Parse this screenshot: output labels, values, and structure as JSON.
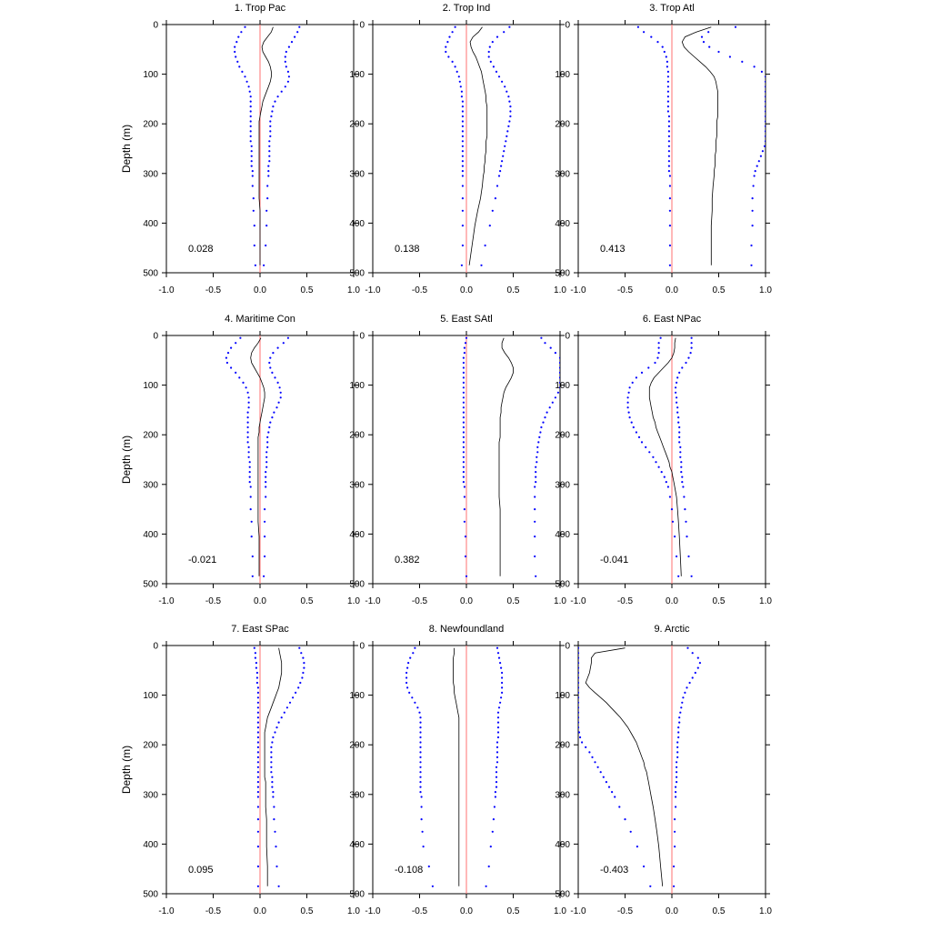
{
  "chart_data": {
    "type": "line",
    "xlim": [
      -1.0,
      1.0
    ],
    "ylim": [
      500,
      0
    ],
    "x_ticks": [
      "-1.0",
      "-0.5",
      "0.0",
      "0.5",
      "1.0"
    ],
    "y_ticks": [
      "0",
      "100",
      "200",
      "300",
      "400",
      "500"
    ],
    "ylabel": "Depth (m)",
    "grid": false,
    "colors": {
      "mean_line": "#000000",
      "bounds": "#0000ff",
      "zero_line": "#ff7070"
    },
    "depths": [
      5,
      15,
      25,
      35,
      45,
      55,
      65,
      75,
      85,
      95,
      105,
      115,
      125,
      135,
      145,
      155,
      165,
      175,
      185,
      195,
      205,
      215,
      225,
      235,
      245,
      255,
      265,
      275,
      285,
      295,
      305,
      325,
      350,
      375,
      405,
      445,
      485
    ],
    "panels": [
      {
        "title": "1. Trop Pac",
        "annotation": "0.028",
        "mean": [
          0.14,
          0.12,
          0.08,
          0.04,
          0.02,
          0.03,
          0.06,
          0.09,
          0.11,
          0.12,
          0.12,
          0.11,
          0.09,
          0.07,
          0.05,
          0.03,
          0.02,
          0.01,
          0.0,
          -0.01,
          -0.01,
          -0.01,
          -0.01,
          -0.01,
          -0.01,
          -0.01,
          -0.01,
          -0.01,
          -0.01,
          -0.01,
          -0.01,
          -0.01,
          -0.01,
          0.0,
          0.0,
          0.0,
          0.0
        ],
        "lower": [
          -0.16,
          -0.2,
          -0.23,
          -0.25,
          -0.27,
          -0.27,
          -0.26,
          -0.24,
          -0.22,
          -0.19,
          -0.16,
          -0.14,
          -0.12,
          -0.11,
          -0.1,
          -0.1,
          -0.1,
          -0.1,
          -0.1,
          -0.1,
          -0.1,
          -0.1,
          -0.1,
          -0.1,
          -0.09,
          -0.09,
          -0.09,
          -0.09,
          -0.09,
          -0.08,
          -0.08,
          -0.08,
          -0.07,
          -0.07,
          -0.06,
          -0.06,
          -0.05
        ],
        "upper": [
          0.42,
          0.4,
          0.37,
          0.34,
          0.31,
          0.28,
          0.27,
          0.27,
          0.28,
          0.3,
          0.31,
          0.3,
          0.27,
          0.23,
          0.19,
          0.16,
          0.14,
          0.13,
          0.12,
          0.11,
          0.11,
          0.11,
          0.11,
          0.1,
          0.1,
          0.1,
          0.1,
          0.1,
          0.09,
          0.09,
          0.09,
          0.08,
          0.08,
          0.07,
          0.07,
          0.06,
          0.04
        ]
      },
      {
        "title": "2. Trop Ind",
        "annotation": "0.138",
        "mean": [
          0.17,
          0.13,
          0.07,
          0.04,
          0.05,
          0.07,
          0.1,
          0.12,
          0.14,
          0.16,
          0.17,
          0.18,
          0.19,
          0.2,
          0.21,
          0.21,
          0.22,
          0.22,
          0.22,
          0.22,
          0.22,
          0.22,
          0.22,
          0.21,
          0.21,
          0.21,
          0.2,
          0.2,
          0.19,
          0.19,
          0.18,
          0.17,
          0.15,
          0.12,
          0.09,
          0.06,
          0.03
        ],
        "lower": [
          -0.12,
          -0.15,
          -0.18,
          -0.2,
          -0.22,
          -0.22,
          -0.19,
          -0.15,
          -0.12,
          -0.1,
          -0.08,
          -0.07,
          -0.06,
          -0.05,
          -0.05,
          -0.04,
          -0.04,
          -0.04,
          -0.04,
          -0.04,
          -0.04,
          -0.04,
          -0.04,
          -0.04,
          -0.04,
          -0.04,
          -0.04,
          -0.04,
          -0.04,
          -0.04,
          -0.04,
          -0.04,
          -0.04,
          -0.04,
          -0.04,
          -0.04,
          -0.05
        ],
        "upper": [
          0.46,
          0.4,
          0.33,
          0.28,
          0.25,
          0.24,
          0.24,
          0.26,
          0.29,
          0.32,
          0.35,
          0.38,
          0.41,
          0.43,
          0.45,
          0.46,
          0.47,
          0.47,
          0.47,
          0.46,
          0.45,
          0.44,
          0.43,
          0.42,
          0.41,
          0.4,
          0.39,
          0.38,
          0.37,
          0.36,
          0.35,
          0.33,
          0.31,
          0.28,
          0.25,
          0.2,
          0.16
        ]
      },
      {
        "title": "3. Trop Atl",
        "annotation": "0.413",
        "mean": [
          0.42,
          0.26,
          0.14,
          0.11,
          0.13,
          0.18,
          0.24,
          0.3,
          0.36,
          0.41,
          0.45,
          0.47,
          0.48,
          0.49,
          0.49,
          0.49,
          0.49,
          0.49,
          0.49,
          0.48,
          0.48,
          0.48,
          0.48,
          0.47,
          0.47,
          0.47,
          0.46,
          0.46,
          0.46,
          0.45,
          0.45,
          0.44,
          0.43,
          0.43,
          0.42,
          0.42,
          0.42
        ],
        "lower": [
          -0.36,
          -0.3,
          -0.22,
          -0.15,
          -0.1,
          -0.08,
          -0.06,
          -0.05,
          -0.05,
          -0.04,
          -0.04,
          -0.04,
          -0.04,
          -0.04,
          -0.04,
          -0.04,
          -0.04,
          -0.04,
          -0.03,
          -0.03,
          -0.03,
          -0.03,
          -0.03,
          -0.03,
          -0.03,
          -0.03,
          -0.03,
          -0.03,
          -0.03,
          -0.03,
          -0.02,
          -0.02,
          -0.02,
          -0.02,
          -0.02,
          -0.02,
          -0.02
        ],
        "upper": [
          0.68,
          0.39,
          0.32,
          0.34,
          0.4,
          0.5,
          0.62,
          0.75,
          0.88,
          0.96,
          1.0,
          1.0,
          1.0,
          1.0,
          1.0,
          1.0,
          1.0,
          1.0,
          1.0,
          1.0,
          1.0,
          1.0,
          1.0,
          1.0,
          0.99,
          0.97,
          0.95,
          0.93,
          0.91,
          0.89,
          0.88,
          0.87,
          0.86,
          0.86,
          0.86,
          0.85,
          0.85
        ]
      },
      {
        "title": "4. Maritime Con",
        "annotation": "-0.021",
        "mean": [
          0.01,
          -0.02,
          -0.06,
          -0.09,
          -0.1,
          -0.09,
          -0.06,
          -0.03,
          0.0,
          0.02,
          0.04,
          0.05,
          0.05,
          0.04,
          0.03,
          0.02,
          0.01,
          0.0,
          -0.01,
          -0.01,
          -0.02,
          -0.02,
          -0.02,
          -0.02,
          -0.02,
          -0.02,
          -0.02,
          -0.02,
          -0.02,
          -0.02,
          -0.02,
          -0.02,
          -0.02,
          -0.02,
          -0.01,
          -0.01,
          -0.01
        ],
        "lower": [
          -0.21,
          -0.26,
          -0.31,
          -0.34,
          -0.36,
          -0.35,
          -0.31,
          -0.26,
          -0.22,
          -0.18,
          -0.15,
          -0.13,
          -0.12,
          -0.12,
          -0.12,
          -0.13,
          -0.13,
          -0.13,
          -0.13,
          -0.13,
          -0.13,
          -0.13,
          -0.12,
          -0.12,
          -0.12,
          -0.11,
          -0.11,
          -0.11,
          -0.11,
          -0.11,
          -0.1,
          -0.1,
          -0.1,
          -0.09,
          -0.09,
          -0.08,
          -0.08
        ],
        "upper": [
          0.3,
          0.25,
          0.19,
          0.14,
          0.11,
          0.1,
          0.11,
          0.13,
          0.16,
          0.19,
          0.21,
          0.22,
          0.22,
          0.2,
          0.18,
          0.15,
          0.13,
          0.11,
          0.1,
          0.09,
          0.08,
          0.08,
          0.08,
          0.07,
          0.07,
          0.07,
          0.07,
          0.06,
          0.06,
          0.06,
          0.06,
          0.06,
          0.05,
          0.05,
          0.05,
          0.05,
          0.04
        ]
      },
      {
        "title": "5. East SAtl",
        "annotation": "0.382",
        "mean": [
          0.4,
          0.38,
          0.38,
          0.41,
          0.45,
          0.48,
          0.5,
          0.5,
          0.48,
          0.45,
          0.42,
          0.4,
          0.39,
          0.38,
          0.37,
          0.37,
          0.36,
          0.36,
          0.36,
          0.36,
          0.36,
          0.35,
          0.35,
          0.35,
          0.35,
          0.35,
          0.35,
          0.35,
          0.35,
          0.35,
          0.35,
          0.35,
          0.36,
          0.36,
          0.36,
          0.36,
          0.36
        ],
        "lower": [
          0.0,
          -0.01,
          -0.02,
          -0.02,
          -0.03,
          -0.03,
          -0.03,
          -0.03,
          -0.03,
          -0.03,
          -0.03,
          -0.03,
          -0.03,
          -0.03,
          -0.03,
          -0.03,
          -0.03,
          -0.03,
          -0.03,
          -0.03,
          -0.03,
          -0.03,
          -0.03,
          -0.03,
          -0.03,
          -0.03,
          -0.03,
          -0.03,
          -0.03,
          -0.03,
          -0.02,
          -0.02,
          -0.02,
          -0.02,
          -0.01,
          -0.01,
          0.0
        ],
        "upper": [
          0.8,
          0.84,
          0.9,
          0.95,
          1.0,
          1.0,
          1.0,
          1.0,
          1.0,
          1.0,
          1.0,
          0.98,
          0.95,
          0.92,
          0.89,
          0.86,
          0.84,
          0.82,
          0.8,
          0.79,
          0.78,
          0.77,
          0.76,
          0.76,
          0.75,
          0.75,
          0.74,
          0.74,
          0.74,
          0.74,
          0.73,
          0.73,
          0.73,
          0.73,
          0.73,
          0.73,
          0.74
        ]
      },
      {
        "title": "6. East NPac",
        "annotation": "-0.041",
        "mean": [
          0.04,
          0.03,
          0.03,
          0.02,
          0.0,
          -0.04,
          -0.09,
          -0.14,
          -0.19,
          -0.22,
          -0.24,
          -0.24,
          -0.24,
          -0.23,
          -0.22,
          -0.21,
          -0.2,
          -0.18,
          -0.17,
          -0.15,
          -0.13,
          -0.11,
          -0.09,
          -0.07,
          -0.05,
          -0.03,
          -0.02,
          0.0,
          0.01,
          0.02,
          0.03,
          0.05,
          0.06,
          0.07,
          0.08,
          0.09,
          0.1
        ],
        "lower": [
          -0.12,
          -0.14,
          -0.14,
          -0.14,
          -0.15,
          -0.18,
          -0.25,
          -0.32,
          -0.38,
          -0.42,
          -0.45,
          -0.46,
          -0.47,
          -0.47,
          -0.47,
          -0.46,
          -0.45,
          -0.43,
          -0.41,
          -0.38,
          -0.35,
          -0.32,
          -0.28,
          -0.24,
          -0.2,
          -0.17,
          -0.14,
          -0.11,
          -0.08,
          -0.06,
          -0.04,
          -0.02,
          0.0,
          0.01,
          0.03,
          0.05,
          0.07
        ],
        "upper": [
          0.21,
          0.21,
          0.21,
          0.2,
          0.18,
          0.15,
          0.11,
          0.08,
          0.06,
          0.05,
          0.04,
          0.04,
          0.05,
          0.05,
          0.06,
          0.06,
          0.07,
          0.07,
          0.08,
          0.08,
          0.08,
          0.08,
          0.09,
          0.09,
          0.09,
          0.1,
          0.1,
          0.1,
          0.11,
          0.11,
          0.12,
          0.13,
          0.14,
          0.15,
          0.16,
          0.18,
          0.21
        ]
      },
      {
        "title": "7. East SPac",
        "annotation": "0.095",
        "mean": [
          0.2,
          0.21,
          0.22,
          0.23,
          0.23,
          0.23,
          0.22,
          0.21,
          0.2,
          0.18,
          0.16,
          0.14,
          0.12,
          0.1,
          0.08,
          0.07,
          0.06,
          0.05,
          0.05,
          0.05,
          0.05,
          0.05,
          0.05,
          0.05,
          0.05,
          0.05,
          0.05,
          0.06,
          0.06,
          0.06,
          0.06,
          0.06,
          0.07,
          0.07,
          0.07,
          0.08,
          0.08
        ],
        "lower": [
          -0.06,
          -0.05,
          -0.05,
          -0.04,
          -0.04,
          -0.03,
          -0.03,
          -0.03,
          -0.02,
          -0.02,
          -0.02,
          -0.02,
          -0.02,
          -0.02,
          -0.02,
          -0.02,
          -0.02,
          -0.02,
          -0.02,
          -0.02,
          -0.02,
          -0.02,
          -0.02,
          -0.02,
          -0.02,
          -0.02,
          -0.02,
          -0.02,
          -0.02,
          -0.02,
          -0.02,
          -0.02,
          -0.02,
          -0.02,
          -0.02,
          -0.02,
          -0.02
        ],
        "upper": [
          0.42,
          0.44,
          0.46,
          0.47,
          0.47,
          0.46,
          0.45,
          0.43,
          0.41,
          0.38,
          0.35,
          0.32,
          0.29,
          0.26,
          0.23,
          0.2,
          0.18,
          0.16,
          0.14,
          0.13,
          0.12,
          0.12,
          0.12,
          0.12,
          0.12,
          0.12,
          0.13,
          0.13,
          0.13,
          0.14,
          0.14,
          0.15,
          0.15,
          0.16,
          0.17,
          0.18,
          0.2
        ]
      },
      {
        "title": "8. Newfoundland",
        "annotation": "-0.108",
        "mean": [
          -0.13,
          -0.13,
          -0.14,
          -0.14,
          -0.14,
          -0.14,
          -0.14,
          -0.14,
          -0.13,
          -0.13,
          -0.12,
          -0.11,
          -0.1,
          -0.09,
          -0.08,
          -0.08,
          -0.08,
          -0.08,
          -0.08,
          -0.08,
          -0.08,
          -0.08,
          -0.08,
          -0.08,
          -0.08,
          -0.08,
          -0.08,
          -0.08,
          -0.08,
          -0.08,
          -0.08,
          -0.08,
          -0.08,
          -0.08,
          -0.08,
          -0.08,
          -0.08
        ],
        "lower": [
          -0.55,
          -0.57,
          -0.6,
          -0.62,
          -0.63,
          -0.64,
          -0.64,
          -0.64,
          -0.63,
          -0.61,
          -0.58,
          -0.55,
          -0.52,
          -0.5,
          -0.49,
          -0.49,
          -0.49,
          -0.49,
          -0.49,
          -0.49,
          -0.49,
          -0.49,
          -0.49,
          -0.49,
          -0.49,
          -0.49,
          -0.49,
          -0.49,
          -0.49,
          -0.49,
          -0.48,
          -0.48,
          -0.48,
          -0.47,
          -0.46,
          -0.4,
          -0.36
        ],
        "upper": [
          0.33,
          0.34,
          0.35,
          0.36,
          0.37,
          0.38,
          0.38,
          0.38,
          0.38,
          0.38,
          0.37,
          0.36,
          0.35,
          0.34,
          0.34,
          0.34,
          0.34,
          0.34,
          0.34,
          0.33,
          0.33,
          0.33,
          0.33,
          0.33,
          0.32,
          0.32,
          0.32,
          0.32,
          0.32,
          0.31,
          0.31,
          0.3,
          0.29,
          0.28,
          0.26,
          0.24,
          0.21
        ]
      },
      {
        "title": "9. Arctic",
        "annotation": "-0.403",
        "mean": [
          -0.5,
          -0.82,
          -0.86,
          -0.86,
          -0.87,
          -0.88,
          -0.9,
          -0.92,
          -0.88,
          -0.82,
          -0.76,
          -0.7,
          -0.65,
          -0.6,
          -0.55,
          -0.51,
          -0.47,
          -0.44,
          -0.41,
          -0.38,
          -0.36,
          -0.34,
          -0.32,
          -0.3,
          -0.29,
          -0.27,
          -0.26,
          -0.25,
          -0.24,
          -0.23,
          -0.22,
          -0.2,
          -0.18,
          -0.16,
          -0.14,
          -0.12,
          -0.1
        ],
        "lower": [
          -1.0,
          -1.0,
          -1.0,
          -1.0,
          -1.0,
          -1.0,
          -1.0,
          -1.0,
          -1.0,
          -1.0,
          -1.0,
          -1.0,
          -1.0,
          -1.0,
          -1.0,
          -1.0,
          -1.0,
          -0.99,
          -0.98,
          -0.96,
          -0.92,
          -0.88,
          -0.85,
          -0.82,
          -0.79,
          -0.76,
          -0.73,
          -0.7,
          -0.67,
          -0.64,
          -0.61,
          -0.56,
          -0.5,
          -0.44,
          -0.37,
          -0.3,
          -0.23
        ],
        "upper": [
          0.17,
          0.22,
          0.28,
          0.3,
          0.28,
          0.25,
          0.22,
          0.19,
          0.16,
          0.14,
          0.12,
          0.11,
          0.1,
          0.09,
          0.08,
          0.08,
          0.07,
          0.07,
          0.07,
          0.06,
          0.06,
          0.06,
          0.06,
          0.05,
          0.05,
          0.05,
          0.05,
          0.05,
          0.04,
          0.04,
          0.04,
          0.04,
          0.03,
          0.03,
          0.03,
          0.02,
          0.02
        ]
      }
    ]
  }
}
